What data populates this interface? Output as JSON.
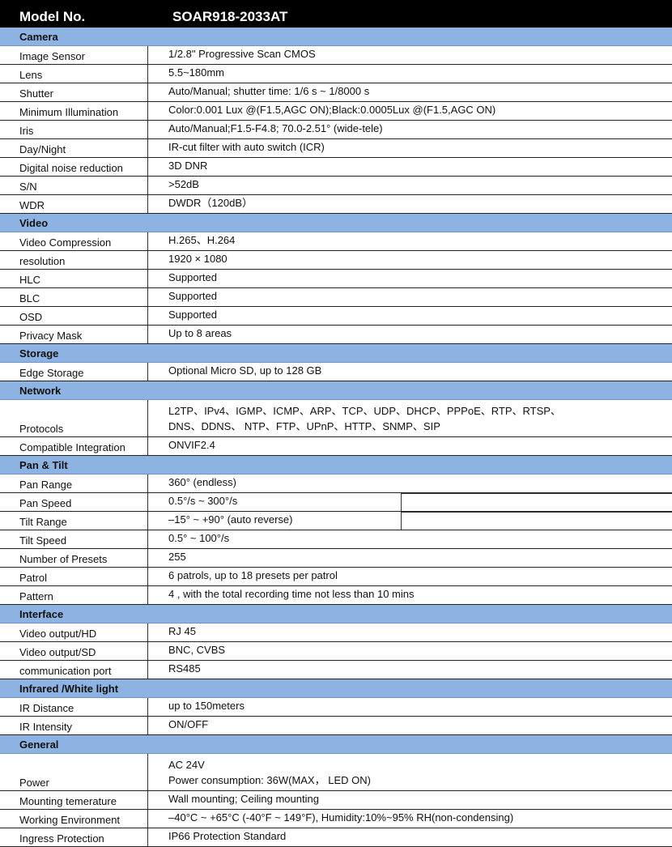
{
  "header": {
    "label": "Model No.",
    "model": "SOAR918-2033AT"
  },
  "sections": [
    {
      "title": "Camera",
      "rows": [
        {
          "k": "Image Sensor",
          "v": [
            "1/2.8\" Progressive Scan CMOS"
          ]
        },
        {
          "k": "Lens",
          "v": [
            "5.5~180mm"
          ]
        },
        {
          "k": "Shutter",
          "v": [
            "Auto/Manual; shutter time: 1/6 s ~ 1/8000 s"
          ]
        },
        {
          "k": "Minimum Illumination",
          "v": [
            "Color:0.001 Lux @(F1.5,AGC ON);Black:0.0005Lux @(F1.5,AGC ON)"
          ]
        },
        {
          "k": "Iris",
          "v": [
            "Auto/Manual;F1.5-F4.8;   70.0-2.51° (wide-tele)"
          ]
        },
        {
          "k": "Day/Night",
          "v": [
            "IR-cut filter with auto switch (ICR)"
          ]
        },
        {
          "k": "Digital noise reduction",
          "v": [
            "3D DNR"
          ]
        },
        {
          "k": "S/N",
          "v": [
            ">52dB"
          ]
        },
        {
          "k": "WDR",
          "v": [
            "DWDR（120dB）"
          ]
        }
      ]
    },
    {
      "title": "Video",
      "rows": [
        {
          "k": "Video Compression",
          "v": [
            "H.265、H.264"
          ]
        },
        {
          "k": "resolution",
          "v": [
            "1920 × 1080"
          ]
        },
        {
          "k": "HLC",
          "v": [
            "Supported"
          ]
        },
        {
          "k": "BLC",
          "v": [
            "Supported"
          ]
        },
        {
          "k": "OSD",
          "v": [
            "Supported"
          ]
        },
        {
          "k": "Privacy Mask",
          "v": [
            "Up to 8 areas"
          ]
        }
      ]
    },
    {
      "title": "Storage",
      "rows": [
        {
          "k": "Edge Storage",
          "v": [
            "Optional Micro SD, up to 128 GB"
          ]
        }
      ]
    },
    {
      "title": "Network",
      "rows": [
        {
          "k": "Protocols",
          "v": [
            "L2TP、IPv4、IGMP、ICMP、ARP、TCP、UDP、DHCP、PPPoE、RTP、RTSP、",
            "DNS、DDNS、 NTP、FTP、UPnP、HTTP、SNMP、SIP"
          ]
        },
        {
          "k": "Compatible Integration",
          "v": [
            "ONVIF2.4"
          ]
        }
      ]
    },
    {
      "title": "Pan & Tilt",
      "rows": [
        {
          "k": "Pan Range",
          "v": [
            "360° (endless)"
          ]
        },
        {
          "k": "Pan Speed",
          "v": [
            "0.5°/s ~ 300°/s"
          ],
          "extra": true
        },
        {
          "k": "Tilt Range",
          "v": [
            "–15° ~ +90° (auto reverse)"
          ],
          "extra": true
        },
        {
          "k": "Tilt Speed",
          "v": [
            "0.5° ~ 100°/s"
          ]
        },
        {
          "k": "Number of Presets",
          "v": [
            "255"
          ]
        },
        {
          "k": "Patrol",
          "v": [
            "6 patrols, up to 18 presets per patrol"
          ]
        },
        {
          "k": "Pattern",
          "v": [
            "4 , with the total recording time not less than 10 mins"
          ]
        }
      ]
    },
    {
      "title": "Interface",
      "rows": [
        {
          "k": "Video output/HD",
          "v": [
            "RJ 45"
          ]
        },
        {
          "k": "Video output/SD",
          "v": [
            "BNC, CVBS"
          ]
        },
        {
          "k": "communication port",
          "v": [
            "RS485"
          ]
        }
      ]
    },
    {
      "title": "Infrared /White light",
      "rows": [
        {
          "k": "IR Distance",
          "v": [
            "up to 150meters"
          ]
        },
        {
          "k": "IR Intensity",
          "v": [
            "ON/OFF"
          ]
        }
      ]
    },
    {
      "title": "General",
      "rows": [
        {
          "k": "Power",
          "v": [
            "AC 24V",
            "Power consumption: 36W(MAX， LED ON)"
          ]
        },
        {
          "k": "Mounting temerature",
          "v": [
            "Wall mounting; Ceiling mounting"
          ]
        },
        {
          "k": "Working Environment",
          "v": [
            "–40°C ~ +65°C (-40°F ~ 149°F), Humidity:10%~95% RH(non-condensing)"
          ]
        },
        {
          "k": "Ingress Protection",
          "v": [
            "IP66 Protection Standard"
          ]
        }
      ]
    }
  ]
}
